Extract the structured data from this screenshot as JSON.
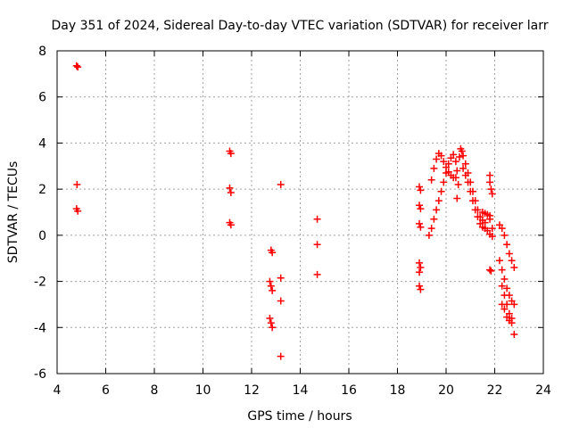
{
  "chart_data": {
    "type": "scatter",
    "title": "Day 351 of 2024, Sidereal Day-to-day VTEC variation (SDTVAR) for receiver larr",
    "xlabel": "GPS time / hours",
    "ylabel": "SDTVAR / TECUs",
    "xlim": [
      4,
      24
    ],
    "ylim": [
      -6,
      8
    ],
    "xticks": [
      4,
      6,
      8,
      10,
      12,
      14,
      16,
      18,
      20,
      22,
      24
    ],
    "yticks": [
      -6,
      -4,
      -2,
      0,
      2,
      4,
      6,
      8
    ],
    "grid": true,
    "marker": "+",
    "color": "#ff0000",
    "series": [
      {
        "name": "SDTVAR",
        "points": [
          [
            4.8,
            7.35
          ],
          [
            4.85,
            7.3
          ],
          [
            4.82,
            2.2
          ],
          [
            4.8,
            1.15
          ],
          [
            4.85,
            1.05
          ],
          [
            11.1,
            3.65
          ],
          [
            11.15,
            3.55
          ],
          [
            11.1,
            2.05
          ],
          [
            11.15,
            1.85
          ],
          [
            11.1,
            0.55
          ],
          [
            11.15,
            0.45
          ],
          [
            12.8,
            -0.65
          ],
          [
            12.85,
            -0.75
          ],
          [
            12.75,
            -2.0
          ],
          [
            12.8,
            -2.2
          ],
          [
            12.85,
            -2.4
          ],
          [
            12.75,
            -3.6
          ],
          [
            12.8,
            -3.8
          ],
          [
            12.85,
            -4.0
          ],
          [
            13.2,
            2.2
          ],
          [
            13.2,
            -1.85
          ],
          [
            13.2,
            -2.85
          ],
          [
            13.2,
            -5.25
          ],
          [
            14.7,
            0.7
          ],
          [
            14.7,
            -0.4
          ],
          [
            14.7,
            -1.7
          ],
          [
            18.9,
            2.1
          ],
          [
            18.95,
            1.95
          ],
          [
            18.9,
            1.3
          ],
          [
            18.95,
            1.15
          ],
          [
            18.9,
            0.5
          ],
          [
            18.95,
            0.35
          ],
          [
            18.9,
            -1.2
          ],
          [
            18.95,
            -1.4
          ],
          [
            18.9,
            -1.6
          ],
          [
            18.9,
            -2.2
          ],
          [
            18.95,
            -2.35
          ],
          [
            19.4,
            2.4
          ],
          [
            19.5,
            2.9
          ],
          [
            19.6,
            3.3
          ],
          [
            19.7,
            3.55
          ],
          [
            19.8,
            3.45
          ],
          [
            19.9,
            3.2
          ],
          [
            20.0,
            2.95
          ],
          [
            20.1,
            2.75
          ],
          [
            20.2,
            2.6
          ],
          [
            20.3,
            2.5
          ],
          [
            20.4,
            2.5
          ],
          [
            19.3,
            0.0
          ],
          [
            19.4,
            0.3
          ],
          [
            19.5,
            0.7
          ],
          [
            19.6,
            1.1
          ],
          [
            19.7,
            1.5
          ],
          [
            19.8,
            1.9
          ],
          [
            19.9,
            2.3
          ],
          [
            20.0,
            2.7
          ],
          [
            20.1,
            3.1
          ],
          [
            20.2,
            3.35
          ],
          [
            20.3,
            3.5
          ],
          [
            20.4,
            3.2
          ],
          [
            20.45,
            2.8
          ],
          [
            20.5,
            2.2
          ],
          [
            20.45,
            1.6
          ],
          [
            20.55,
            3.4
          ],
          [
            20.6,
            3.75
          ],
          [
            20.65,
            3.65
          ],
          [
            20.7,
            3.45
          ],
          [
            20.8,
            3.1
          ],
          [
            20.9,
            2.7
          ],
          [
            21.0,
            2.3
          ],
          [
            21.1,
            1.9
          ],
          [
            21.2,
            1.5
          ],
          [
            21.3,
            1.1
          ],
          [
            21.4,
            0.8
          ],
          [
            21.5,
            0.65
          ],
          [
            21.6,
            0.55
          ],
          [
            20.7,
            2.9
          ],
          [
            20.8,
            2.6
          ],
          [
            20.9,
            2.3
          ],
          [
            21.0,
            1.9
          ],
          [
            21.1,
            1.5
          ],
          [
            21.2,
            1.1
          ],
          [
            21.3,
            0.8
          ],
          [
            21.4,
            0.5
          ],
          [
            21.5,
            0.35
          ],
          [
            21.6,
            0.3
          ],
          [
            21.7,
            0.2
          ],
          [
            21.8,
            0.05
          ],
          [
            21.9,
            -0.05
          ],
          [
            21.5,
            1.0
          ],
          [
            21.6,
            0.95
          ],
          [
            21.7,
            0.9
          ],
          [
            21.8,
            0.85
          ],
          [
            21.8,
            2.6
          ],
          [
            21.8,
            2.3
          ],
          [
            21.85,
            2.0
          ],
          [
            21.9,
            1.8
          ],
          [
            21.8,
            0.7
          ],
          [
            21.9,
            0.3
          ],
          [
            21.8,
            -1.5
          ],
          [
            21.85,
            -1.55
          ],
          [
            22.2,
            0.45
          ],
          [
            22.3,
            0.3
          ],
          [
            22.4,
            0.0
          ],
          [
            22.5,
            -0.4
          ],
          [
            22.6,
            -0.8
          ],
          [
            22.7,
            -1.1
          ],
          [
            22.8,
            -1.4
          ],
          [
            22.2,
            -1.1
          ],
          [
            22.3,
            -1.5
          ],
          [
            22.4,
            -1.9
          ],
          [
            22.5,
            -2.3
          ],
          [
            22.6,
            -2.6
          ],
          [
            22.7,
            -2.85
          ],
          [
            22.8,
            -3.0
          ],
          [
            22.3,
            -2.2
          ],
          [
            22.4,
            -2.6
          ],
          [
            22.5,
            -3.0
          ],
          [
            22.6,
            -3.4
          ],
          [
            22.7,
            -3.8
          ],
          [
            22.8,
            -4.3
          ],
          [
            22.3,
            -3.0
          ],
          [
            22.4,
            -3.2
          ],
          [
            22.5,
            -3.55
          ],
          [
            22.6,
            -3.7
          ],
          [
            22.7,
            -3.6
          ]
        ]
      }
    ]
  }
}
